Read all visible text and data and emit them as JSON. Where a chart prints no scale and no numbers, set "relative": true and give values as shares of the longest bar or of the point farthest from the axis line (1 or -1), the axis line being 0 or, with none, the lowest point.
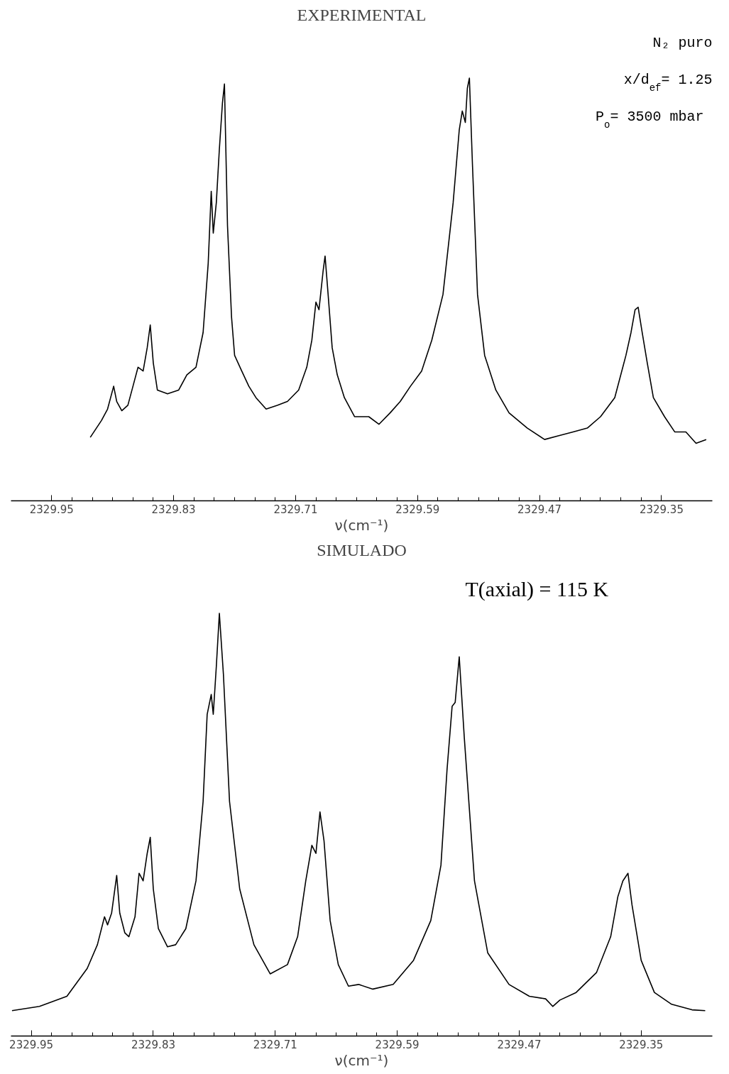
{
  "chart_data": [
    {
      "type": "line",
      "title": "EXPERIMENTAL",
      "xlabel": "ν(cm⁻¹)",
      "relative": true,
      "color": "#000000",
      "grid": false,
      "marker": "none",
      "xlim": [
        2329.99,
        2329.3
      ],
      "xticks": [
        2329.95,
        2329.83,
        2329.71,
        2329.59,
        2329.47,
        2329.35
      ],
      "annotations": [
        "N₂ puro",
        "x/d$_{ef}$= 1.25",
        "P$_{o}$= 3500  mbar"
      ],
      "x": [
        2329.912,
        2329.901,
        2329.895,
        2329.889,
        2329.886,
        2329.881,
        2329.875,
        2329.87,
        2329.865,
        2329.86,
        2329.856,
        2329.853,
        2329.85,
        2329.846,
        2329.836,
        2329.825,
        2329.817,
        2329.808,
        2329.801,
        2329.796,
        2329.793,
        2329.791,
        2329.788,
        2329.785,
        2329.782,
        2329.78,
        2329.777,
        2329.773,
        2329.77,
        2329.763,
        2329.756,
        2329.749,
        2329.739,
        2329.728,
        2329.718,
        2329.707,
        2329.699,
        2329.694,
        2329.69,
        2329.687,
        2329.683,
        2329.681,
        2329.678,
        2329.674,
        2329.669,
        2329.662,
        2329.652,
        2329.638,
        2329.628,
        2329.617,
        2329.607,
        2329.597,
        2329.586,
        2329.576,
        2329.565,
        2329.555,
        2329.549,
        2329.546,
        2329.543,
        2329.541,
        2329.539,
        2329.536,
        2329.531,
        2329.524,
        2329.513,
        2329.5,
        2329.482,
        2329.465,
        2329.451,
        2329.437,
        2329.423,
        2329.41,
        2329.396,
        2329.385,
        2329.38,
        2329.376,
        2329.373,
        2329.369,
        2329.364,
        2329.358,
        2329.347,
        2329.337,
        2329.326,
        2329.316,
        2329.306
      ],
      "values": [
        0.15,
        0.19,
        0.217,
        0.271,
        0.235,
        0.213,
        0.226,
        0.271,
        0.316,
        0.307,
        0.362,
        0.416,
        0.326,
        0.262,
        0.253,
        0.262,
        0.298,
        0.316,
        0.398,
        0.561,
        0.732,
        0.633,
        0.705,
        0.832,
        0.94,
        0.986,
        0.651,
        0.434,
        0.344,
        0.307,
        0.271,
        0.244,
        0.217,
        0.226,
        0.235,
        0.262,
        0.316,
        0.38,
        0.47,
        0.452,
        0.542,
        0.579,
        0.488,
        0.362,
        0.298,
        0.244,
        0.199,
        0.199,
        0.181,
        0.208,
        0.235,
        0.271,
        0.307,
        0.38,
        0.488,
        0.705,
        0.877,
        0.922,
        0.895,
        0.976,
        1,
        0.796,
        0.488,
        0.344,
        0.262,
        0.208,
        0.172,
        0.145,
        0.154,
        0.163,
        0.172,
        0.199,
        0.244,
        0.344,
        0.398,
        0.452,
        0.458,
        0.398,
        0.326,
        0.244,
        0.199,
        0.163,
        0.163,
        0.136,
        0.145
      ]
    },
    {
      "type": "line",
      "title": "SIMULADO",
      "xlabel": "ν(cm⁻¹)",
      "relative": true,
      "color": "#000000",
      "grid": false,
      "marker": "none",
      "xlim": [
        2329.97,
        2329.28
      ],
      "xticks": [
        2329.95,
        2329.83,
        2329.71,
        2329.59,
        2329.47,
        2329.35
      ],
      "annotations": [
        "T(axial)  =  115 K"
      ],
      "x": [
        2329.969,
        2329.942,
        2329.915,
        2329.895,
        2329.885,
        2329.878,
        2329.875,
        2329.871,
        2329.866,
        2329.863,
        2329.858,
        2329.854,
        2329.848,
        2329.844,
        2329.84,
        2329.836,
        2329.833,
        2329.83,
        2329.825,
        2329.816,
        2329.808,
        2329.798,
        2329.788,
        2329.781,
        2329.777,
        2329.773,
        2329.771,
        2329.768,
        2329.765,
        2329.761,
        2329.755,
        2329.745,
        2329.731,
        2329.715,
        2329.698,
        2329.688,
        2329.68,
        2329.674,
        2329.67,
        2329.666,
        2329.662,
        2329.656,
        2329.648,
        2329.638,
        2329.628,
        2329.614,
        2329.594,
        2329.574,
        2329.557,
        2329.547,
        2329.541,
        2329.536,
        2329.533,
        2329.529,
        2329.524,
        2329.514,
        2329.501,
        2329.48,
        2329.46,
        2329.444,
        2329.437,
        2329.43,
        2329.414,
        2329.394,
        2329.38,
        2329.373,
        2329.368,
        2329.363,
        2329.359,
        2329.35,
        2329.337,
        2329.32,
        2329.3,
        2329.287
      ],
      "values": [
        0.06,
        0.07,
        0.094,
        0.16,
        0.216,
        0.282,
        0.263,
        0.291,
        0.38,
        0.291,
        0.244,
        0.235,
        0.282,
        0.385,
        0.367,
        0.432,
        0.47,
        0.348,
        0.254,
        0.211,
        0.216,
        0.254,
        0.367,
        0.555,
        0.761,
        0.808,
        0.761,
        0.874,
        1,
        0.855,
        0.555,
        0.348,
        0.216,
        0.147,
        0.169,
        0.235,
        0.367,
        0.451,
        0.432,
        0.53,
        0.461,
        0.273,
        0.169,
        0.118,
        0.122,
        0.111,
        0.122,
        0.179,
        0.273,
        0.404,
        0.63,
        0.78,
        0.789,
        0.897,
        0.705,
        0.367,
        0.197,
        0.122,
        0.094,
        0.088,
        0.07,
        0.085,
        0.103,
        0.15,
        0.235,
        0.329,
        0.367,
        0.385,
        0.31,
        0.179,
        0.103,
        0.075,
        0.062,
        0.06
      ]
    }
  ]
}
